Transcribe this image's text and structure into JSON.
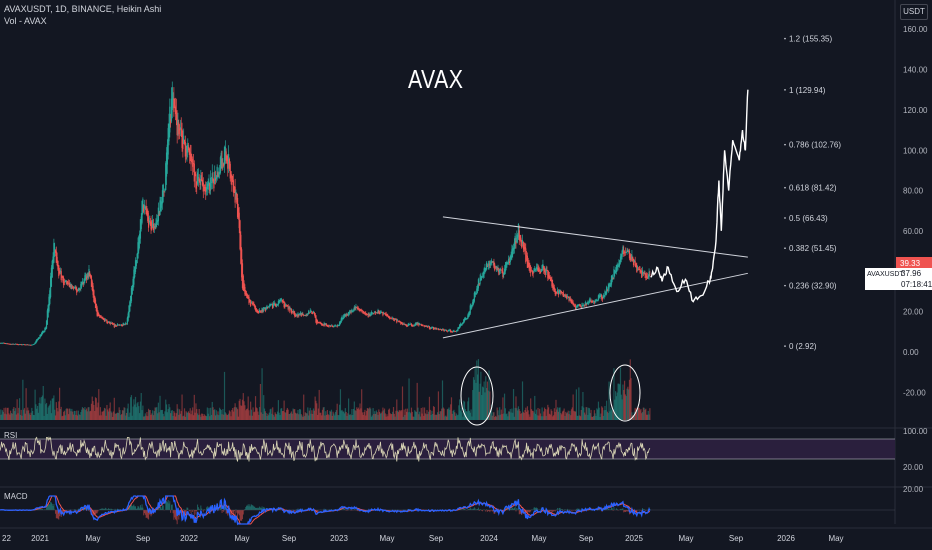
{
  "header": {
    "symbol_line": "AVAXUSDT, 1D, BINANCE, Heikin Ashi",
    "volume_line": "Vol - AVAX",
    "currency_button": "USDT"
  },
  "annotation_title": "AVAX",
  "colors": {
    "background": "#131722",
    "up": "#26a69a",
    "down": "#ef5350",
    "projection": "#ffffff",
    "rsi_line": "#d9d5b5",
    "rsi_band": "#2a1f3d",
    "macd_line": "#2962ff",
    "signal_line": "#ef5350",
    "price_badge": "#ef5350",
    "axis_text": "#b2b5be"
  },
  "price_axis": {
    "ticks": [
      "160.00",
      "140.00",
      "120.00",
      "100.00",
      "80.00",
      "60.00",
      "40.00",
      "20.00",
      "0.00",
      "-20.00"
    ],
    "current_price_badge": "39.33",
    "symbol_badge": "AVAXUSDT",
    "symbol_badge_price": "37.96",
    "countdown": "07:18:41"
  },
  "rsi_panel": {
    "label": "RSI",
    "ticks": [
      "100.00",
      "20.00"
    ]
  },
  "macd_panel": {
    "label": "MACD",
    "ticks": [
      "20.00"
    ]
  },
  "time_axis": [
    "22",
    "2021",
    "May",
    "Sep",
    "2022",
    "May",
    "Sep",
    "2023",
    "May",
    "Sep",
    "2024",
    "May",
    "Sep",
    "2025",
    "May",
    "Sep",
    "2026",
    "May"
  ],
  "fib_levels": [
    {
      "label": "1.2 (155.35)",
      "value": 155.35
    },
    {
      "label": "1 (129.94)",
      "value": 129.94
    },
    {
      "label": "0.786 (102.76)",
      "value": 102.76
    },
    {
      "label": "0.618 (81.42)",
      "value": 81.42
    },
    {
      "label": "0.5 (66.43)",
      "value": 66.43
    },
    {
      "label": "0.382 (51.45)",
      "value": 51.45
    },
    {
      "label": "0.236 (32.90)",
      "value": 32.9
    },
    {
      "label": "0 (2.92)",
      "value": 2.92
    }
  ],
  "chart_data": {
    "type": "line",
    "title": "AVAX",
    "ylim": [
      -30,
      165
    ],
    "series": [
      {
        "name": "AVAXUSDT",
        "x": [
          "2020-09-25",
          "2020-10-20",
          "2020-12-15",
          "2021-01-15",
          "2021-02-05",
          "2021-02-10",
          "2021-03-01",
          "2021-04-01",
          "2021-05-01",
          "2021-05-20",
          "2021-07-01",
          "2021-08-01",
          "2021-08-20",
          "2021-09-10",
          "2021-09-23",
          "2021-10-10",
          "2021-11-01",
          "2021-11-21",
          "2021-12-05",
          "2021-12-25",
          "2022-01-20",
          "2022-02-20",
          "2022-03-10",
          "2022-04-01",
          "2022-05-01",
          "2022-05-12",
          "2022-06-15",
          "2022-07-15",
          "2022-08-15",
          "2022-09-20",
          "2022-11-01",
          "2022-11-10",
          "2022-12-31",
          "2023-01-15",
          "2023-02-15",
          "2023-03-10",
          "2023-04-15",
          "2023-06-15",
          "2023-07-15",
          "2023-08-15",
          "2023-10-15",
          "2023-11-15",
          "2023-12-15",
          "2024-01-05",
          "2024-02-10",
          "2024-03-18",
          "2024-04-15",
          "2024-05-20",
          "2024-06-15",
          "2024-07-15",
          "2024-08-05",
          "2024-09-01",
          "2024-10-15",
          "2024-11-20",
          "2024-12-05",
          "2025-01-10",
          "2025-02-03"
        ],
        "y": [
          4.5,
          4,
          3.5,
          12,
          55,
          42,
          35,
          30,
          40,
          18,
          13,
          14,
          40,
          75,
          62,
          65,
          80,
          130,
          110,
          100,
          85,
          80,
          90,
          100,
          70,
          30,
          20,
          22,
          25,
          18,
          20,
          14,
          13,
          18,
          22,
          18,
          20,
          13,
          14,
          12,
          10,
          18,
          37,
          45,
          38,
          60,
          40,
          42,
          30,
          28,
          22,
          24,
          28,
          45,
          52,
          39,
          37.96
        ]
      },
      {
        "name": "Projection",
        "x": [
          "2025-02-05",
          "2025-02-20",
          "2025-03-05",
          "2025-03-20",
          "2025-04-10",
          "2025-05-01",
          "2025-05-20",
          "2025-06-10",
          "2025-06-28",
          "2025-07-05",
          "2025-07-15",
          "2025-07-22",
          "2025-07-28",
          "2025-08-05",
          "2025-08-15",
          "2025-08-25",
          "2025-09-10",
          "2025-09-18",
          "2025-09-25",
          "2025-10-01"
        ],
        "y": [
          37,
          42,
          35,
          42,
          30,
          36,
          25,
          28,
          35,
          40,
          55,
          85,
          60,
          100,
          80,
          105,
          95,
          110,
          100,
          130
        ]
      }
    ],
    "trendlines": [
      {
        "name": "resistance",
        "x": [
          "2023-09-15",
          "2025-10-01"
        ],
        "y": [
          67,
          47
        ]
      },
      {
        "name": "support",
        "x": [
          "2023-09-15",
          "2025-10-01"
        ],
        "y": [
          7,
          39
        ]
      }
    ]
  }
}
